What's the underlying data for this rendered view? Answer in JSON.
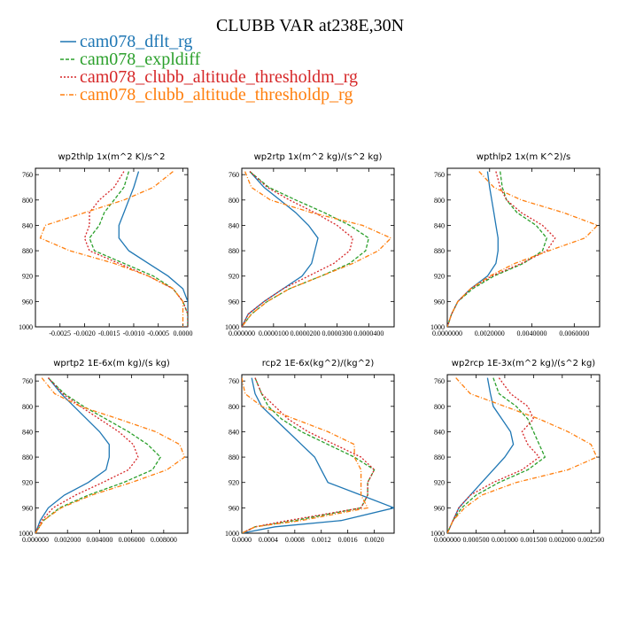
{
  "figure": {
    "title": "CLUBB VAR at238E,30N",
    "legend": [
      {
        "label": "cam078_dflt_rg",
        "color": "#1f77b4"
      },
      {
        "label": "cam078_expldiff",
        "color": "#2ca02c"
      },
      {
        "label": "cam078_clubb_altitude_thresholdm_rg",
        "color": "#d62728"
      },
      {
        "label": "cam078_clubb_altitude_thresholdp_rg",
        "color": "#ff7f0e"
      }
    ]
  },
  "chart_data": [
    {
      "type": "line",
      "title": "wp2thlp   1x(m^2 K)/s^2",
      "xlim": [
        -0.003,
        0.0001
      ],
      "ylim": [
        750,
        1000
      ],
      "y_inverted": true,
      "xticks": [
        -0.0025,
        -0.002,
        -0.0015,
        -0.001,
        -0.0005,
        0
      ],
      "xtick_labels": [
        "-0.0025",
        "-0.0020",
        "-0.0015",
        "-0.0010",
        "-0.0005",
        "0.0000"
      ],
      "yticks": [
        760,
        800,
        840,
        880,
        920,
        960,
        1000
      ],
      "ytick_labels": [
        "760",
        "800",
        "840",
        "880",
        "920",
        "960",
        "1000"
      ],
      "y": [
        755,
        780,
        800,
        820,
        840,
        860,
        880,
        900,
        920,
        940,
        960,
        980,
        1000
      ],
      "series": [
        {
          "name": "cam078_dflt_rg",
          "color": "#1f77b4",
          "x": [
            -0.0009,
            -0.001,
            -0.0011,
            -0.0012,
            -0.0013,
            -0.0013,
            -0.0011,
            -0.0007,
            -0.0003,
            0,
            0.0001,
            0.0001,
            0.0001
          ]
        },
        {
          "name": "cam078_expldiff",
          "color": "#2ca02c",
          "x": [
            -0.0011,
            -0.0012,
            -0.0014,
            -0.0016,
            -0.0017,
            -0.0019,
            -0.0018,
            -0.0012,
            -0.0006,
            -0.0002,
            0,
            0.0001,
            0.0001
          ]
        },
        {
          "name": "cam078_clubb_altitude_thresholdm_rg",
          "color": "#d62728",
          "x": [
            -0.0012,
            -0.0014,
            -0.0017,
            -0.0019,
            -0.0019,
            -0.002,
            -0.0019,
            -0.0013,
            -0.0007,
            -0.0002,
            0,
            0.0001,
            0.0001
          ]
        },
        {
          "name": "cam078_clubb_altitude_thresholdp_rg",
          "color": "#ff7f0e",
          "x": [
            -0.0002,
            -0.0006,
            -0.0012,
            -0.002,
            -0.0028,
            -0.0029,
            -0.0023,
            -0.0014,
            -0.0007,
            -0.0002,
            0,
            0,
            0
          ]
        }
      ]
    },
    {
      "type": "line",
      "title": "wp2rtp   1x(m^2 kg)/(s^2 kg)",
      "xlim": [
        0,
        4.8e-05
      ],
      "ylim": [
        750,
        1000
      ],
      "y_inverted": true,
      "xticks": [
        0,
        1e-05,
        2e-05,
        3e-05,
        4e-05
      ],
      "xtick_labels": [
        "0.000000",
        "0.0000100",
        "0.0000200",
        "0.0000300",
        "0.0000400"
      ],
      "yticks": [
        760,
        800,
        840,
        880,
        920,
        960,
        1000
      ],
      "ytick_labels": [
        "760",
        "800",
        "840",
        "880",
        "920",
        "960",
        "1000"
      ],
      "y": [
        755,
        780,
        800,
        820,
        840,
        860,
        880,
        900,
        920,
        940,
        960,
        980,
        1000
      ],
      "series": [
        {
          "name": "cam078_dflt_rg",
          "color": "#1f77b4",
          "x": [
            2.5e-06,
            7e-06,
            1.2e-05,
            1.7e-05,
            2.1e-05,
            2.4e-05,
            2.3e-05,
            2.2e-05,
            1.9e-05,
            1.3e-05,
            7e-06,
            2e-06,
            0
          ]
        },
        {
          "name": "cam078_expldiff",
          "color": "#2ca02c",
          "x": [
            2.5e-06,
            8.5e-06,
            1.7e-05,
            2.6e-05,
            3.4e-05,
            4e-05,
            3.9e-05,
            3.4e-05,
            2.5e-05,
            1.5e-05,
            8e-06,
            3e-06,
            0
          ]
        },
        {
          "name": "cam078_clubb_altitude_thresholdm_rg",
          "color": "#d62728",
          "x": [
            2.5e-06,
            8e-06,
            1.5e-05,
            2.3e-05,
            3e-05,
            3.5e-05,
            3.4e-05,
            2.9e-05,
            2.1e-05,
            1.3e-05,
            7e-06,
            2e-06,
            0
          ]
        },
        {
          "name": "cam078_clubb_altitude_thresholdp_rg",
          "color": "#ff7f0e",
          "x": [
            1e-06,
            3e-06,
            9e-06,
            2.2e-05,
            3.8e-05,
            4.7e-05,
            4.3e-05,
            3.5e-05,
            2.5e-05,
            1.5e-05,
            8e-06,
            3e-06,
            0
          ]
        }
      ]
    },
    {
      "type": "line",
      "title": "wpthlp2   1x(m K^2)/s",
      "xlim": [
        0,
        0.0072
      ],
      "ylim": [
        750,
        1000
      ],
      "y_inverted": true,
      "xticks": [
        0,
        0.002,
        0.004,
        0.006
      ],
      "xtick_labels": [
        "0.0000000",
        "0.0020000",
        "0.0040000",
        "0.0060000"
      ],
      "yticks": [
        760,
        800,
        840,
        880,
        920,
        960,
        1000
      ],
      "ytick_labels": [
        "760",
        "800",
        "840",
        "880",
        "920",
        "960",
        "1000"
      ],
      "y": [
        755,
        780,
        800,
        820,
        840,
        860,
        880,
        900,
        920,
        940,
        960,
        980,
        1000
      ],
      "series": [
        {
          "name": "cam078_dflt_rg",
          "color": "#1f77b4",
          "x": [
            0.0019,
            0.002,
            0.0021,
            0.0022,
            0.0023,
            0.0024,
            0.0024,
            0.0023,
            0.0019,
            0.0011,
            0.0005,
            0.0002,
            0
          ]
        },
        {
          "name": "cam078_expldiff",
          "color": "#2ca02c",
          "x": [
            0.0025,
            0.0026,
            0.0028,
            0.0033,
            0.0042,
            0.0047,
            0.0045,
            0.0036,
            0.0022,
            0.0012,
            0.0005,
            0.0002,
            0
          ]
        },
        {
          "name": "cam078_clubb_altitude_thresholdm_rg",
          "color": "#d62728",
          "x": [
            0.0023,
            0.0025,
            0.0028,
            0.0035,
            0.0045,
            0.0051,
            0.0047,
            0.0035,
            0.0021,
            0.0011,
            0.0005,
            0.0002,
            0
          ]
        },
        {
          "name": "cam078_clubb_altitude_thresholdp_rg",
          "color": "#ff7f0e",
          "x": [
            0.0015,
            0.0022,
            0.0035,
            0.0055,
            0.0071,
            0.0065,
            0.0048,
            0.0032,
            0.002,
            0.0011,
            0.0005,
            0.0002,
            0
          ]
        }
      ]
    },
    {
      "type": "line",
      "title": "wprtp2   1E-6x(m kg)/(s kg)",
      "xlim": [
        0,
        0.0095
      ],
      "ylim": [
        750,
        1000
      ],
      "y_inverted": true,
      "xticks": [
        0,
        0.002,
        0.004,
        0.006,
        0.008
      ],
      "xtick_labels": [
        "0.000000",
        "0.002000",
        "0.004000",
        "0.006000",
        "0.008000"
      ],
      "yticks": [
        760,
        800,
        840,
        880,
        920,
        960,
        1000
      ],
      "ytick_labels": [
        "760",
        "800",
        "840",
        "880",
        "920",
        "960",
        "1000"
      ],
      "y": [
        755,
        780,
        800,
        820,
        840,
        860,
        880,
        900,
        920,
        940,
        960,
        980,
        1000
      ],
      "series": [
        {
          "name": "cam078_dflt_rg",
          "color": "#1f77b4",
          "x": [
            0.0008,
            0.0016,
            0.0024,
            0.0032,
            0.004,
            0.0046,
            0.0046,
            0.0044,
            0.0033,
            0.0018,
            0.0008,
            0.0003,
            0
          ]
        },
        {
          "name": "cam078_expldiff",
          "color": "#2ca02c",
          "x": [
            0.0008,
            0.0018,
            0.003,
            0.0044,
            0.0058,
            0.007,
            0.0078,
            0.0073,
            0.0055,
            0.0033,
            0.0015,
            0.0005,
            0
          ]
        },
        {
          "name": "cam078_clubb_altitude_thresholdm_rg",
          "color": "#d62728",
          "x": [
            0.0008,
            0.0017,
            0.0028,
            0.004,
            0.0052,
            0.0061,
            0.0064,
            0.0058,
            0.0042,
            0.0025,
            0.0011,
            0.0004,
            0
          ]
        },
        {
          "name": "cam078_clubb_altitude_thresholdp_rg",
          "color": "#ff7f0e",
          "x": [
            0.0004,
            0.0012,
            0.0028,
            0.0052,
            0.0075,
            0.009,
            0.0093,
            0.0082,
            0.006,
            0.0035,
            0.0016,
            0.0005,
            0
          ]
        }
      ]
    },
    {
      "type": "line",
      "title": "rcp2   1E-6x(kg^2)/(kg^2)",
      "xlim": [
        0,
        0.0023
      ],
      "ylim": [
        750,
        1000
      ],
      "y_inverted": true,
      "xticks": [
        0,
        0.0004,
        0.0008,
        0.0012,
        0.0016,
        0.002
      ],
      "xtick_labels": [
        "0.0000",
        "0.0004",
        "0.0008",
        "0.0012",
        "0.0016",
        "0.0020"
      ],
      "yticks": [
        760,
        800,
        840,
        880,
        920,
        960,
        1000
      ],
      "ytick_labels": [
        "760",
        "800",
        "840",
        "880",
        "920",
        "960",
        "1000"
      ],
      "y": [
        755,
        780,
        800,
        820,
        840,
        860,
        880,
        900,
        920,
        940,
        960,
        980,
        990,
        1000
      ],
      "series": [
        {
          "name": "cam078_dflt_rg",
          "color": "#1f77b4",
          "x": [
            0.00015,
            0.0002,
            0.0003,
            0.0005,
            0.0007,
            0.0009,
            0.0011,
            0.0012,
            0.0013,
            0.0018,
            0.0023,
            0.0015,
            0.0005,
            0
          ]
        },
        {
          "name": "cam078_expldiff",
          "color": "#2ca02c",
          "x": [
            0.0002,
            0.0003,
            0.0004,
            0.0006,
            0.0009,
            0.0013,
            0.0017,
            0.002,
            0.0019,
            0.0019,
            0.0018,
            0.0008,
            0.0002,
            0
          ]
        },
        {
          "name": "cam078_clubb_altitude_thresholdm_rg",
          "color": "#d62728",
          "x": [
            0.0002,
            0.0003,
            0.0005,
            0.0007,
            0.001,
            0.0014,
            0.0018,
            0.002,
            0.0019,
            0.0019,
            0.0018,
            0.0007,
            0.0002,
            0
          ]
        },
        {
          "name": "cam078_clubb_altitude_thresholdp_rg",
          "color": "#ff7f0e",
          "x": [
            0,
            5e-05,
            0.0003,
            0.0008,
            0.0013,
            0.0017,
            0.0017,
            0.0018,
            0.0018,
            0.0018,
            0.0019,
            0.0009,
            0.0002,
            0
          ]
        }
      ]
    },
    {
      "type": "line",
      "title": "wp2rcp   1E-3x(m^2 kg)/(s^2 kg)",
      "xlim": [
        0,
        0.00265
      ],
      "ylim": [
        750,
        1000
      ],
      "y_inverted": true,
      "xticks": [
        0,
        0.0005,
        0.001,
        0.0015,
        0.002,
        0.0025
      ],
      "xtick_labels": [
        "0.000000",
        "0.000500",
        "0.001000",
        "0.001500",
        "0.002000",
        "0.002500"
      ],
      "yticks": [
        760,
        800,
        840,
        880,
        920,
        960,
        1000
      ],
      "ytick_labels": [
        "760",
        "800",
        "840",
        "880",
        "920",
        "960",
        "1000"
      ],
      "y": [
        755,
        780,
        800,
        820,
        840,
        860,
        880,
        900,
        920,
        940,
        960,
        980,
        1000
      ],
      "series": [
        {
          "name": "cam078_dflt_rg",
          "color": "#1f77b4",
          "x": [
            0.0007,
            0.00075,
            0.0008,
            0.00095,
            0.0011,
            0.00115,
            0.001,
            0.0008,
            0.0006,
            0.0004,
            0.0002,
            0.0001,
            0
          ]
        },
        {
          "name": "cam078_expldiff",
          "color": "#2ca02c",
          "x": [
            0.0008,
            0.0009,
            0.0012,
            0.0014,
            0.0015,
            0.0016,
            0.0017,
            0.0014,
            0.0009,
            0.0005,
            0.00025,
            0.0001,
            0
          ]
        },
        {
          "name": "cam078_clubb_altitude_thresholdm_rg",
          "color": "#d62728",
          "x": [
            0.0009,
            0.0011,
            0.0014,
            0.0015,
            0.0013,
            0.0014,
            0.0016,
            0.0013,
            0.0008,
            0.0004,
            0.0002,
            0.0001,
            0
          ]
        },
        {
          "name": "cam078_clubb_altitude_thresholdp_rg",
          "color": "#ff7f0e",
          "x": [
            0.00015,
            0.0004,
            0.001,
            0.0016,
            0.0021,
            0.0025,
            0.0026,
            0.0021,
            0.0012,
            0.0006,
            0.0003,
            0.0001,
            0
          ]
        }
      ]
    }
  ]
}
